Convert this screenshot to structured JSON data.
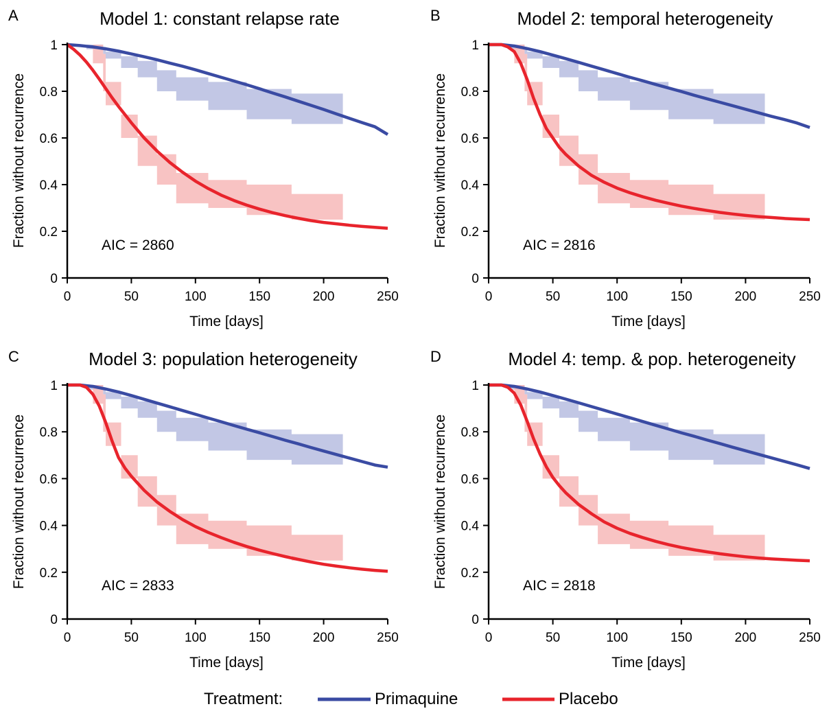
{
  "chart_data": [
    {
      "type": "line",
      "panel": "A",
      "title": "Model 1: constant relapse rate",
      "xlabel": "Time [days]",
      "ylabel": "Fraction without recurrence",
      "xlim": [
        0,
        250
      ],
      "ylim": [
        0,
        1
      ],
      "xticks": [
        0,
        50,
        100,
        150,
        200,
        250
      ],
      "yticks": [
        0,
        0.2,
        0.4,
        0.6,
        0.8,
        1
      ],
      "ytick_labels": [
        "0",
        "0.2",
        "0.4",
        "0.6",
        "0.8",
        "1"
      ],
      "annotation": "AIC = 2860",
      "series": [
        {
          "name": "Primaquine",
          "x": [
            0,
            10,
            20,
            30,
            40,
            50,
            60,
            70,
            80,
            90,
            100,
            110,
            120,
            130,
            140,
            150,
            160,
            170,
            180,
            190,
            200,
            210,
            220,
            230,
            240,
            250
          ],
          "y": [
            1.0,
            0.996,
            0.99,
            0.982,
            0.972,
            0.96,
            0.948,
            0.935,
            0.921,
            0.907,
            0.892,
            0.876,
            0.86,
            0.844,
            0.828,
            0.811,
            0.793,
            0.776,
            0.758,
            0.74,
            0.722,
            0.703,
            0.684,
            0.666,
            0.648,
            0.615
          ]
        },
        {
          "name": "Placebo",
          "x": [
            0,
            5,
            10,
            15,
            20,
            25,
            30,
            35,
            40,
            45,
            50,
            60,
            70,
            80,
            90,
            100,
            110,
            120,
            130,
            140,
            150,
            160,
            170,
            180,
            190,
            200,
            210,
            220,
            230,
            240,
            250
          ],
          "y": [
            1.0,
            0.98,
            0.955,
            0.925,
            0.89,
            0.852,
            0.812,
            0.772,
            0.735,
            0.7,
            0.665,
            0.6,
            0.544,
            0.495,
            0.453,
            0.415,
            0.383,
            0.355,
            0.332,
            0.312,
            0.295,
            0.28,
            0.267,
            0.256,
            0.246,
            0.238,
            0.232,
            0.226,
            0.221,
            0.217,
            0.213
          ]
        }
      ],
      "bands": [
        {
          "series": "Primaquine",
          "x": [
            0,
            15,
            28,
            30,
            42,
            55,
            70,
            85,
            110,
            140,
            175,
            215
          ],
          "lower": [
            1.0,
            0.98,
            0.96,
            0.94,
            0.9,
            0.86,
            0.8,
            0.76,
            0.72,
            0.68,
            0.66,
            0.66
          ],
          "upper": [
            1.0,
            1.0,
            0.99,
            0.97,
            0.95,
            0.93,
            0.89,
            0.86,
            0.84,
            0.81,
            0.79,
            0.78
          ]
        },
        {
          "series": "Placebo",
          "x": [
            0,
            20,
            28,
            30,
            42,
            55,
            70,
            85,
            110,
            140,
            175,
            215
          ],
          "lower": [
            1.0,
            0.92,
            0.8,
            0.74,
            0.6,
            0.48,
            0.4,
            0.32,
            0.3,
            0.27,
            0.25,
            0.25
          ],
          "upper": [
            1.0,
            1.0,
            0.96,
            0.84,
            0.7,
            0.61,
            0.53,
            0.45,
            0.42,
            0.4,
            0.36,
            0.36
          ]
        }
      ]
    },
    {
      "type": "line",
      "panel": "B",
      "title": "Model 2: temporal heterogeneity",
      "xlabel": "Time [days]",
      "ylabel": "Fraction without recurrence",
      "xlim": [
        0,
        250
      ],
      "ylim": [
        0,
        1
      ],
      "xticks": [
        0,
        50,
        100,
        150,
        200,
        250
      ],
      "yticks": [
        0,
        0.2,
        0.4,
        0.6,
        0.8,
        1
      ],
      "ytick_labels": [
        "0",
        "0.2",
        "0.4",
        "0.6",
        "0.8",
        "1"
      ],
      "annotation": "AIC = 2816",
      "series": [
        {
          "name": "Primaquine",
          "x": [
            0,
            10,
            20,
            30,
            40,
            50,
            60,
            70,
            80,
            90,
            100,
            110,
            120,
            130,
            140,
            150,
            160,
            170,
            180,
            190,
            200,
            210,
            220,
            230,
            240,
            250
          ],
          "y": [
            1.0,
            1.0,
            0.994,
            0.983,
            0.97,
            0.955,
            0.94,
            0.924,
            0.908,
            0.892,
            0.876,
            0.86,
            0.845,
            0.829,
            0.814,
            0.799,
            0.783,
            0.768,
            0.753,
            0.738,
            0.723,
            0.708,
            0.693,
            0.679,
            0.664,
            0.645
          ]
        },
        {
          "name": "Placebo",
          "x": [
            0,
            10,
            15,
            20,
            25,
            30,
            35,
            40,
            45,
            50,
            55,
            60,
            70,
            80,
            90,
            100,
            110,
            120,
            130,
            140,
            150,
            160,
            170,
            180,
            190,
            200,
            210,
            220,
            230,
            240,
            250
          ],
          "y": [
            1.0,
            1.0,
            0.99,
            0.97,
            0.92,
            0.85,
            0.77,
            0.7,
            0.64,
            0.6,
            0.56,
            0.53,
            0.48,
            0.44,
            0.41,
            0.385,
            0.365,
            0.348,
            0.333,
            0.32,
            0.308,
            0.298,
            0.289,
            0.281,
            0.274,
            0.268,
            0.263,
            0.259,
            0.255,
            0.252,
            0.25
          ]
        }
      ],
      "bands": [
        {
          "series": "Primaquine",
          "x": [
            0,
            15,
            28,
            30,
            42,
            55,
            70,
            85,
            110,
            140,
            175,
            215
          ],
          "lower": [
            1.0,
            0.98,
            0.96,
            0.94,
            0.9,
            0.86,
            0.8,
            0.76,
            0.72,
            0.68,
            0.66,
            0.66
          ],
          "upper": [
            1.0,
            1.0,
            0.99,
            0.97,
            0.95,
            0.93,
            0.89,
            0.86,
            0.84,
            0.81,
            0.79,
            0.78
          ]
        },
        {
          "series": "Placebo",
          "x": [
            0,
            20,
            28,
            30,
            42,
            55,
            70,
            85,
            110,
            140,
            175,
            215
          ],
          "lower": [
            1.0,
            0.92,
            0.8,
            0.74,
            0.6,
            0.48,
            0.4,
            0.32,
            0.3,
            0.27,
            0.25,
            0.25
          ],
          "upper": [
            1.0,
            1.0,
            0.96,
            0.84,
            0.7,
            0.61,
            0.53,
            0.45,
            0.42,
            0.4,
            0.36,
            0.36
          ]
        }
      ]
    },
    {
      "type": "line",
      "panel": "C",
      "title": "Model 3: population heterogeneity",
      "xlabel": "Time [days]",
      "ylabel": "Fraction without recurrence",
      "xlim": [
        0,
        250
      ],
      "ylim": [
        0,
        1
      ],
      "xticks": [
        0,
        50,
        100,
        150,
        200,
        250
      ],
      "yticks": [
        0,
        0.2,
        0.4,
        0.6,
        0.8,
        1
      ],
      "ytick_labels": [
        "0",
        "0.2",
        "0.4",
        "0.6",
        "0.8",
        "1"
      ],
      "annotation": "AIC = 2833",
      "series": [
        {
          "name": "Primaquine",
          "x": [
            0,
            10,
            20,
            30,
            40,
            50,
            60,
            70,
            80,
            90,
            100,
            110,
            120,
            130,
            140,
            150,
            160,
            170,
            180,
            190,
            200,
            210,
            220,
            230,
            240,
            250
          ],
          "y": [
            1.0,
            1.0,
            0.994,
            0.983,
            0.97,
            0.955,
            0.939,
            0.923,
            0.907,
            0.891,
            0.875,
            0.859,
            0.843,
            0.827,
            0.811,
            0.796,
            0.78,
            0.764,
            0.749,
            0.733,
            0.718,
            0.703,
            0.688,
            0.673,
            0.658,
            0.649
          ]
        },
        {
          "name": "Placebo",
          "x": [
            0,
            10,
            15,
            20,
            25,
            30,
            35,
            40,
            45,
            50,
            55,
            60,
            70,
            80,
            90,
            100,
            110,
            120,
            130,
            140,
            150,
            160,
            170,
            180,
            190,
            200,
            210,
            220,
            230,
            240,
            250
          ],
          "y": [
            1.0,
            1.0,
            0.99,
            0.96,
            0.91,
            0.84,
            0.76,
            0.69,
            0.645,
            0.61,
            0.58,
            0.55,
            0.5,
            0.46,
            0.425,
            0.395,
            0.37,
            0.348,
            0.328,
            0.31,
            0.294,
            0.28,
            0.267,
            0.255,
            0.244,
            0.234,
            0.226,
            0.219,
            0.213,
            0.208,
            0.204
          ]
        }
      ],
      "bands": [
        {
          "series": "Primaquine",
          "x": [
            0,
            15,
            28,
            30,
            42,
            55,
            70,
            85,
            110,
            140,
            175,
            215
          ],
          "lower": [
            1.0,
            0.98,
            0.96,
            0.94,
            0.9,
            0.86,
            0.8,
            0.76,
            0.72,
            0.68,
            0.66,
            0.66
          ],
          "upper": [
            1.0,
            1.0,
            0.99,
            0.97,
            0.95,
            0.93,
            0.89,
            0.86,
            0.84,
            0.81,
            0.79,
            0.78
          ]
        },
        {
          "series": "Placebo",
          "x": [
            0,
            20,
            28,
            30,
            42,
            55,
            70,
            85,
            110,
            140,
            175,
            215
          ],
          "lower": [
            1.0,
            0.92,
            0.8,
            0.74,
            0.6,
            0.48,
            0.4,
            0.32,
            0.3,
            0.27,
            0.25,
            0.25
          ],
          "upper": [
            1.0,
            1.0,
            0.96,
            0.84,
            0.7,
            0.61,
            0.53,
            0.45,
            0.42,
            0.4,
            0.36,
            0.36
          ]
        }
      ]
    },
    {
      "type": "line",
      "panel": "D",
      "title": "Model 4: temp. & pop. heterogeneity",
      "xlabel": "Time [days]",
      "ylabel": "Fraction without recurrence",
      "xlim": [
        0,
        250
      ],
      "ylim": [
        0,
        1
      ],
      "xticks": [
        0,
        50,
        100,
        150,
        200,
        250
      ],
      "yticks": [
        0,
        0.2,
        0.4,
        0.6,
        0.8,
        1
      ],
      "ytick_labels": [
        "0",
        "0.2",
        "0.4",
        "0.6",
        "0.8",
        "1"
      ],
      "annotation": "AIC = 2818",
      "series": [
        {
          "name": "Primaquine",
          "x": [
            0,
            10,
            20,
            30,
            40,
            50,
            60,
            70,
            80,
            90,
            100,
            110,
            120,
            130,
            140,
            150,
            160,
            170,
            180,
            190,
            200,
            210,
            220,
            230,
            240,
            250
          ],
          "y": [
            1.0,
            1.0,
            0.994,
            0.983,
            0.97,
            0.955,
            0.94,
            0.924,
            0.908,
            0.892,
            0.876,
            0.86,
            0.844,
            0.828,
            0.812,
            0.796,
            0.781,
            0.765,
            0.75,
            0.734,
            0.719,
            0.704,
            0.689,
            0.674,
            0.659,
            0.643
          ]
        },
        {
          "name": "Placebo",
          "x": [
            0,
            10,
            15,
            20,
            25,
            30,
            35,
            40,
            45,
            50,
            55,
            60,
            70,
            80,
            90,
            100,
            110,
            120,
            130,
            140,
            150,
            160,
            170,
            180,
            190,
            200,
            210,
            220,
            230,
            240,
            250
          ],
          "y": [
            1.0,
            1.0,
            0.99,
            0.965,
            0.915,
            0.845,
            0.77,
            0.705,
            0.65,
            0.605,
            0.57,
            0.54,
            0.49,
            0.45,
            0.415,
            0.388,
            0.366,
            0.348,
            0.332,
            0.318,
            0.306,
            0.296,
            0.287,
            0.279,
            0.272,
            0.266,
            0.261,
            0.257,
            0.254,
            0.251,
            0.249
          ]
        }
      ],
      "bands": [
        {
          "series": "Primaquine",
          "x": [
            0,
            15,
            28,
            30,
            42,
            55,
            70,
            85,
            110,
            140,
            175,
            215
          ],
          "lower": [
            1.0,
            0.98,
            0.96,
            0.94,
            0.9,
            0.86,
            0.8,
            0.76,
            0.72,
            0.68,
            0.66,
            0.66
          ],
          "upper": [
            1.0,
            1.0,
            0.99,
            0.97,
            0.95,
            0.93,
            0.89,
            0.86,
            0.84,
            0.81,
            0.79,
            0.78
          ]
        },
        {
          "series": "Placebo",
          "x": [
            0,
            20,
            28,
            30,
            42,
            55,
            70,
            85,
            110,
            140,
            175,
            215
          ],
          "lower": [
            1.0,
            0.92,
            0.8,
            0.74,
            0.6,
            0.48,
            0.4,
            0.32,
            0.3,
            0.27,
            0.25,
            0.25
          ],
          "upper": [
            1.0,
            1.0,
            0.96,
            0.84,
            0.7,
            0.61,
            0.53,
            0.45,
            0.42,
            0.4,
            0.36,
            0.36
          ]
        }
      ]
    }
  ],
  "legend": {
    "title": "Treatment:",
    "placement": "bottom-center",
    "items": [
      {
        "label": "Primaquine",
        "color": "#3a4ba3"
      },
      {
        "label": "Placebo",
        "color": "#e8242c"
      }
    ]
  },
  "colors": {
    "primaquine_line": "#3a4ba3",
    "primaquine_band": "#b7bde0",
    "placebo_line": "#e8242c",
    "placebo_band": "#f7b8b9"
  }
}
